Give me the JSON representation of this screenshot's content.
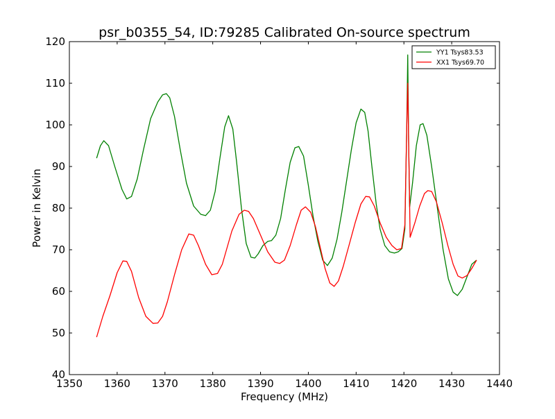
{
  "chart_data": {
    "type": "line",
    "title": "psr_b0355_54, ID:79285 Calibrated On-source spectrum",
    "xlabel": "Frequency (MHz)",
    "ylabel": "Power in Kelvin",
    "xlim": [
      1350,
      1440
    ],
    "ylim": [
      40,
      120
    ],
    "xticks": [
      1350,
      1360,
      1370,
      1380,
      1390,
      1400,
      1410,
      1420,
      1430,
      1440
    ],
    "yticks": [
      40,
      50,
      60,
      70,
      80,
      90,
      100,
      110,
      120
    ],
    "grid": false,
    "legend_position": "top-right",
    "series": [
      {
        "name": "YY1 Tsys83.53",
        "color": "#008000",
        "points": [
          [
            1355.7,
            92.0
          ],
          [
            1356.5,
            95.0
          ],
          [
            1357.2,
            96.2
          ],
          [
            1358.2,
            95.0
          ],
          [
            1359.5,
            90.0
          ],
          [
            1361.0,
            84.5
          ],
          [
            1362.0,
            82.2
          ],
          [
            1363.0,
            82.8
          ],
          [
            1364.2,
            87.0
          ],
          [
            1365.5,
            94.0
          ],
          [
            1367.0,
            101.5
          ],
          [
            1368.5,
            105.5
          ],
          [
            1369.5,
            107.2
          ],
          [
            1370.3,
            107.5
          ],
          [
            1371.0,
            106.5
          ],
          [
            1372.0,
            102.0
          ],
          [
            1373.2,
            94.0
          ],
          [
            1374.5,
            86.0
          ],
          [
            1376.0,
            80.5
          ],
          [
            1377.5,
            78.5
          ],
          [
            1378.5,
            78.2
          ],
          [
            1379.5,
            79.5
          ],
          [
            1380.5,
            84.0
          ],
          [
            1381.5,
            92.0
          ],
          [
            1382.5,
            99.5
          ],
          [
            1383.3,
            102.2
          ],
          [
            1384.2,
            99.0
          ],
          [
            1385.0,
            91.0
          ],
          [
            1386.0,
            80.0
          ],
          [
            1387.0,
            71.5
          ],
          [
            1388.0,
            68.2
          ],
          [
            1388.8,
            68.0
          ],
          [
            1389.5,
            69.0
          ],
          [
            1390.5,
            71.0
          ],
          [
            1391.5,
            72.0
          ],
          [
            1392.3,
            72.2
          ],
          [
            1393.2,
            73.5
          ],
          [
            1394.2,
            77.5
          ],
          [
            1395.2,
            84.5
          ],
          [
            1396.2,
            91.0
          ],
          [
            1397.2,
            94.5
          ],
          [
            1398.0,
            94.8
          ],
          [
            1399.0,
            92.5
          ],
          [
            1400.0,
            85.5
          ],
          [
            1401.0,
            78.0
          ],
          [
            1402.0,
            72.0
          ],
          [
            1403.0,
            67.5
          ],
          [
            1404.0,
            66.2
          ],
          [
            1405.0,
            68.0
          ],
          [
            1406.0,
            72.5
          ],
          [
            1407.0,
            79.0
          ],
          [
            1408.0,
            86.5
          ],
          [
            1409.0,
            94.0
          ],
          [
            1410.0,
            100.5
          ],
          [
            1411.0,
            103.8
          ],
          [
            1411.8,
            103.0
          ],
          [
            1412.5,
            98.5
          ],
          [
            1413.3,
            90.0
          ],
          [
            1414.2,
            81.0
          ],
          [
            1415.0,
            75.0
          ],
          [
            1416.0,
            71.0
          ],
          [
            1417.0,
            69.5
          ],
          [
            1418.0,
            69.2
          ],
          [
            1418.8,
            69.5
          ],
          [
            1419.6,
            70.3
          ],
          [
            1420.2,
            75.0
          ],
          [
            1420.6,
            100.0
          ],
          [
            1420.8,
            116.8
          ],
          [
            1421.0,
            95.0
          ],
          [
            1421.2,
            80.3
          ],
          [
            1421.8,
            86.0
          ],
          [
            1422.6,
            95.0
          ],
          [
            1423.4,
            100.0
          ],
          [
            1424.0,
            100.3
          ],
          [
            1424.8,
            97.5
          ],
          [
            1425.8,
            90.0
          ],
          [
            1427.0,
            80.0
          ],
          [
            1428.2,
            70.0
          ],
          [
            1429.3,
            63.0
          ],
          [
            1430.3,
            59.8
          ],
          [
            1431.2,
            59.0
          ],
          [
            1432.2,
            60.5
          ],
          [
            1433.2,
            63.5
          ],
          [
            1434.2,
            66.5
          ],
          [
            1435.2,
            67.5
          ]
        ]
      },
      {
        "name": "XX1 Tsys69.70",
        "color": "#ff0000",
        "points": [
          [
            1355.7,
            49.0
          ],
          [
            1357.0,
            54.0
          ],
          [
            1358.5,
            59.0
          ],
          [
            1360.0,
            64.5
          ],
          [
            1361.2,
            67.3
          ],
          [
            1362.0,
            67.2
          ],
          [
            1363.0,
            64.8
          ],
          [
            1364.5,
            58.5
          ],
          [
            1366.0,
            54.0
          ],
          [
            1367.5,
            52.3
          ],
          [
            1368.5,
            52.4
          ],
          [
            1369.5,
            54.0
          ],
          [
            1370.5,
            57.5
          ],
          [
            1372.0,
            64.0
          ],
          [
            1373.5,
            70.0
          ],
          [
            1375.0,
            73.8
          ],
          [
            1376.0,
            73.5
          ],
          [
            1377.0,
            71.0
          ],
          [
            1378.5,
            66.5
          ],
          [
            1379.8,
            64.0
          ],
          [
            1381.0,
            64.3
          ],
          [
            1382.0,
            66.5
          ],
          [
            1383.0,
            70.5
          ],
          [
            1384.0,
            74.5
          ],
          [
            1385.5,
            78.5
          ],
          [
            1386.6,
            79.5
          ],
          [
            1387.5,
            79.2
          ],
          [
            1388.5,
            77.5
          ],
          [
            1390.0,
            73.5
          ],
          [
            1391.5,
            69.5
          ],
          [
            1393.0,
            67.0
          ],
          [
            1394.0,
            66.7
          ],
          [
            1395.0,
            67.5
          ],
          [
            1396.2,
            71.0
          ],
          [
            1397.5,
            76.0
          ],
          [
            1398.5,
            79.5
          ],
          [
            1399.4,
            80.3
          ],
          [
            1400.5,
            79.0
          ],
          [
            1401.5,
            75.5
          ],
          [
            1402.5,
            70.5
          ],
          [
            1403.5,
            65.5
          ],
          [
            1404.5,
            62.0
          ],
          [
            1405.4,
            61.2
          ],
          [
            1406.3,
            62.5
          ],
          [
            1407.3,
            66.0
          ],
          [
            1408.5,
            71.0
          ],
          [
            1409.8,
            76.5
          ],
          [
            1411.0,
            81.0
          ],
          [
            1412.0,
            82.8
          ],
          [
            1412.8,
            82.7
          ],
          [
            1413.8,
            80.5
          ],
          [
            1415.0,
            76.5
          ],
          [
            1416.3,
            73.0
          ],
          [
            1417.5,
            71.0
          ],
          [
            1418.5,
            70.0
          ],
          [
            1419.5,
            70.3
          ],
          [
            1420.2,
            76.0
          ],
          [
            1420.6,
            100.0
          ],
          [
            1420.8,
            110.0
          ],
          [
            1421.0,
            95.0
          ],
          [
            1421.3,
            73.0
          ],
          [
            1422.3,
            76.5
          ],
          [
            1423.3,
            80.5
          ],
          [
            1424.3,
            83.5
          ],
          [
            1425.0,
            84.2
          ],
          [
            1425.8,
            84.0
          ],
          [
            1426.8,
            81.5
          ],
          [
            1428.0,
            76.5
          ],
          [
            1429.2,
            71.0
          ],
          [
            1430.3,
            66.5
          ],
          [
            1431.3,
            63.7
          ],
          [
            1432.2,
            63.2
          ],
          [
            1433.2,
            63.8
          ],
          [
            1434.2,
            65.5
          ],
          [
            1435.2,
            67.5
          ]
        ]
      }
    ]
  }
}
